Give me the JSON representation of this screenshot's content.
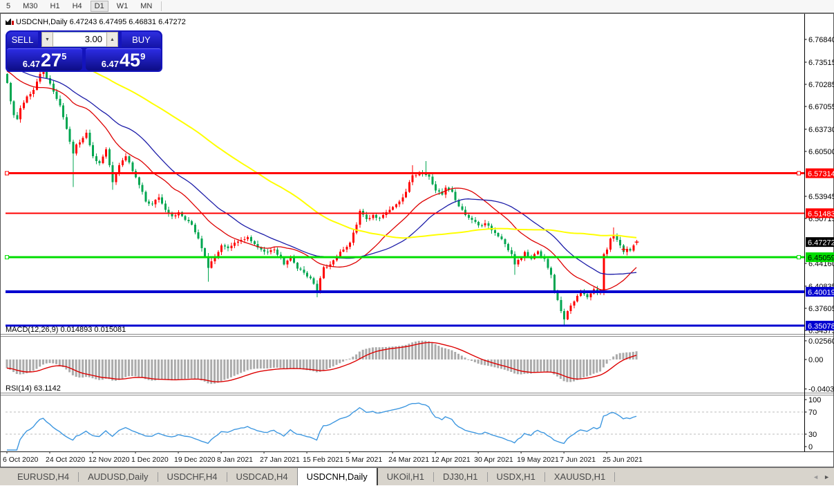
{
  "toolbar": {
    "items": [
      {
        "label": "5",
        "active": false
      },
      {
        "label": "M30",
        "active": false
      },
      {
        "label": "H1",
        "active": false
      },
      {
        "label": "H4",
        "active": false
      },
      {
        "label": "D1",
        "active": true
      },
      {
        "label": "W1",
        "active": false
      },
      {
        "label": "MN",
        "active": false
      }
    ]
  },
  "chart": {
    "title": "USDCNH,Daily 6.47243 6.47495 6.46831 6.47272",
    "symbol": "USDCNH",
    "period": "Daily",
    "open": "6.47243",
    "high": "6.47495",
    "low": "6.46831",
    "close": "6.47272"
  },
  "trade_panel": {
    "sell_label": "SELL",
    "buy_label": "BUY",
    "volume": "3.00",
    "sell_price": {
      "small": "6.47",
      "big": "27",
      "sup": "5"
    },
    "buy_price": {
      "small": "6.47",
      "big": "45",
      "sup": "9"
    }
  },
  "price_axis": {
    "ticks": [
      {
        "label": "6.76840",
        "price": 6.7684
      },
      {
        "label": "6.73515",
        "price": 6.73515
      },
      {
        "label": "6.70285",
        "price": 6.70285
      },
      {
        "label": "6.67055",
        "price": 6.67055
      },
      {
        "label": "6.63730",
        "price": 6.6373
      },
      {
        "label": "6.60500",
        "price": 6.605
      },
      {
        "label": "6.53945",
        "price": 6.53945
      },
      {
        "label": "6.50715",
        "price": 6.50715
      },
      {
        "label": "6.44160",
        "price": 6.4416
      },
      {
        "label": "6.40835",
        "price": 6.40835
      },
      {
        "label": "6.37605",
        "price": 6.37605
      },
      {
        "label": "6.34375",
        "price": 6.34375
      }
    ],
    "current": {
      "label": "6.47272",
      "price": 6.47272,
      "bg": "#000000",
      "fg": "#ffffff"
    }
  },
  "hlines": [
    {
      "label": "6.57314",
      "price": 6.57314,
      "color": "#FF0000",
      "fg": "#ffffff",
      "w": 3,
      "handles": true
    },
    {
      "label": "6.51483",
      "price": 6.51483,
      "color": "#FF0000",
      "fg": "#ffffff",
      "w": 2,
      "handles": false
    },
    {
      "label": "6.45059",
      "price": 6.45059,
      "color": "#00DD00",
      "fg": "#000000",
      "w": 3,
      "handles": true
    },
    {
      "label": "6.40019",
      "price": 6.40019,
      "color": "#0000D0",
      "fg": "#ffffff",
      "w": 4,
      "handles": false
    },
    {
      "label": "6.35078",
      "price": 6.35078,
      "color": "#0000D0",
      "fg": "#ffffff",
      "w": 3,
      "handles": false
    }
  ],
  "indicators": {
    "macd": {
      "label": "MACD(12,26,9) 0.014893 0.015081",
      "fast": 12,
      "slow": 26,
      "signal": 9,
      "value": "0.014893",
      "signal_value": "0.015081",
      "ticks": [
        {
          "label": "0.025609",
          "value": 0.025609
        },
        {
          "label": "0.00",
          "value": 0
        },
        {
          "label": "-0.040388",
          "value": -0.040388
        }
      ],
      "hist_color": "#ababab",
      "signal_color": "#dd0000"
    },
    "rsi": {
      "label": "RSI(14) 63.1142",
      "period": 14,
      "value": "63.1142",
      "ticks": [
        {
          "label": "100",
          "value": 100
        },
        {
          "label": "70",
          "value": 70
        },
        {
          "label": "30",
          "value": 30
        },
        {
          "label": "0",
          "value": 0
        }
      ],
      "levels": [
        30,
        70
      ],
      "line_color": "#3d97e0",
      "level_color": "#bbbbbb"
    }
  },
  "date_axis": {
    "labels": [
      "6 Oct 2020",
      "24 Oct 2020",
      "12 Nov 2020",
      "1 Dec 2020",
      "19 Dec 2020",
      "8 Jan 2021",
      "27 Jan 2021",
      "15 Feb 2021",
      "5 Mar 2021",
      "24 Mar 2021",
      "12 Apr 2021",
      "30 Apr 2021",
      "19 May 2021",
      "7 Jun 2021",
      "25 Jun 2021"
    ],
    "step_bars": 13
  },
  "tabs": {
    "items": [
      {
        "label": "EURUSD,H4",
        "active": false
      },
      {
        "label": "AUDUSD,Daily",
        "active": false
      },
      {
        "label": "USDCHF,H4",
        "active": false
      },
      {
        "label": "USDCAD,H4",
        "active": false
      },
      {
        "label": "USDCNH,Daily",
        "active": true
      },
      {
        "label": "UKOil,H1",
        "active": false
      },
      {
        "label": "DJ30,H1",
        "active": false
      },
      {
        "label": "USDX,H1",
        "active": false
      },
      {
        "label": "XAUUSD,H1",
        "active": false
      }
    ],
    "scroll_left": "◄",
    "scroll_right": "►"
  },
  "chart_data": {
    "type": "candlestick",
    "symbol": "USDCNH",
    "timeframe": "Daily",
    "bar_count": 192,
    "bull_color": "#FF0000",
    "bear_color": "#00A650",
    "ma_lines": [
      {
        "period": 20,
        "color": "#dd0000",
        "name": "fast"
      },
      {
        "period": 34,
        "color": "#1c1ca8",
        "name": "mid"
      },
      {
        "period": 80,
        "color": "#ffff00",
        "name": "slow"
      }
    ],
    "price_range": [
      6.3391,
      6.7879
    ],
    "close_anchors": [
      [
        0,
        6.705
      ],
      [
        1,
        6.678
      ],
      [
        2,
        6.658
      ],
      [
        3,
        6.652
      ],
      [
        4,
        6.668
      ],
      [
        6,
        6.685
      ],
      [
        8,
        6.695
      ],
      [
        10,
        6.718
      ],
      [
        11,
        6.722
      ],
      [
        12,
        6.712
      ],
      [
        14,
        6.692
      ],
      [
        16,
        6.672
      ],
      [
        18,
        6.638
      ],
      [
        20,
        6.602
      ],
      [
        21,
        6.615
      ],
      [
        22,
        6.618
      ],
      [
        24,
        6.632
      ],
      [
        26,
        6.598
      ],
      [
        28,
        6.588
      ],
      [
        30,
        6.608
      ],
      [
        32,
        6.56
      ],
      [
        34,
        6.585
      ],
      [
        36,
        6.598
      ],
      [
        38,
        6.576
      ],
      [
        40,
        6.556
      ],
      [
        42,
        6.532
      ],
      [
        44,
        6.528
      ],
      [
        46,
        6.538
      ],
      [
        48,
        6.52
      ],
      [
        50,
        6.51
      ],
      [
        52,
        6.516
      ],
      [
        54,
        6.505
      ],
      [
        56,
        6.498
      ],
      [
        58,
        6.478
      ],
      [
        60,
        6.452
      ],
      [
        61,
        6.435
      ],
      [
        63,
        6.452
      ],
      [
        65,
        6.468
      ],
      [
        67,
        6.464
      ],
      [
        69,
        6.472
      ],
      [
        71,
        6.476
      ],
      [
        73,
        6.48
      ],
      [
        75,
        6.47
      ],
      [
        77,
        6.462
      ],
      [
        79,
        6.458
      ],
      [
        81,
        6.462
      ],
      [
        83,
        6.45
      ],
      [
        84,
        6.44
      ],
      [
        86,
        6.452
      ],
      [
        88,
        6.434
      ],
      [
        90,
        6.428
      ],
      [
        92,
        6.42
      ],
      [
        94,
        6.402
      ],
      [
        96,
        6.436
      ],
      [
        98,
        6.44
      ],
      [
        100,
        6.452
      ],
      [
        102,
        6.462
      ],
      [
        104,
        6.472
      ],
      [
        106,
        6.498
      ],
      [
        107,
        6.518
      ],
      [
        109,
        6.506
      ],
      [
        111,
        6.512
      ],
      [
        113,
        6.508
      ],
      [
        115,
        6.516
      ],
      [
        117,
        6.524
      ],
      [
        119,
        6.532
      ],
      [
        121,
        6.546
      ],
      [
        123,
        6.57
      ],
      [
        125,
        6.574
      ],
      [
        127,
        6.571
      ],
      [
        128,
        6.568
      ],
      [
        130,
        6.548
      ],
      [
        132,
        6.542
      ],
      [
        133,
        6.552
      ],
      [
        135,
        6.546
      ],
      [
        137,
        6.525
      ],
      [
        139,
        6.512
      ],
      [
        141,
        6.505
      ],
      [
        143,
        6.497
      ],
      [
        145,
        6.5
      ],
      [
        147,
        6.49
      ],
      [
        149,
        6.481
      ],
      [
        151,
        6.47
      ],
      [
        153,
        6.455
      ],
      [
        154,
        6.44
      ],
      [
        156,
        6.45
      ],
      [
        157,
        6.458
      ],
      [
        159,
        6.448
      ],
      [
        161,
        6.459
      ],
      [
        163,
        6.448
      ],
      [
        165,
        6.425
      ],
      [
        166,
        6.402
      ],
      [
        168,
        6.372
      ],
      [
        169,
        6.36
      ],
      [
        170,
        6.372
      ],
      [
        172,
        6.386
      ],
      [
        174,
        6.4
      ],
      [
        176,
        6.392
      ],
      [
        178,
        6.404
      ],
      [
        179,
        6.398
      ],
      [
        180,
        6.403
      ],
      [
        181,
        6.455
      ],
      [
        182,
        6.462
      ],
      [
        183,
        6.478
      ],
      [
        184,
        6.482
      ],
      [
        185,
        6.476
      ],
      [
        186,
        6.468
      ],
      [
        187,
        6.458
      ],
      [
        188,
        6.463
      ],
      [
        189,
        6.46
      ],
      [
        190,
        6.468
      ],
      [
        191,
        6.4727
      ]
    ],
    "wick_overrides": [
      [
        11,
        "h",
        6.735
      ],
      [
        20,
        "l",
        6.553
      ],
      [
        32,
        "l",
        6.549
      ],
      [
        61,
        "l",
        6.415
      ],
      [
        94,
        "l",
        6.392
      ],
      [
        123,
        "h",
        6.585
      ],
      [
        127,
        "h",
        6.591
      ],
      [
        154,
        "l",
        6.425
      ],
      [
        169,
        "l",
        6.351
      ],
      [
        184,
        "h",
        6.494
      ]
    ],
    "key_candles": [
      [
        181,
        6.401,
        6.457,
        6.395,
        6.455
      ],
      [
        191,
        6.47243,
        6.47495,
        6.46831,
        6.47272
      ]
    ],
    "markers": [
      {
        "i": 187,
        "price": 6.462
      },
      {
        "i": 191,
        "price": 6.4727
      }
    ],
    "marker_color": "#FF0000",
    "pre_pad": {
      "bars": 80,
      "from": 6.842,
      "to": 6.708
    }
  }
}
